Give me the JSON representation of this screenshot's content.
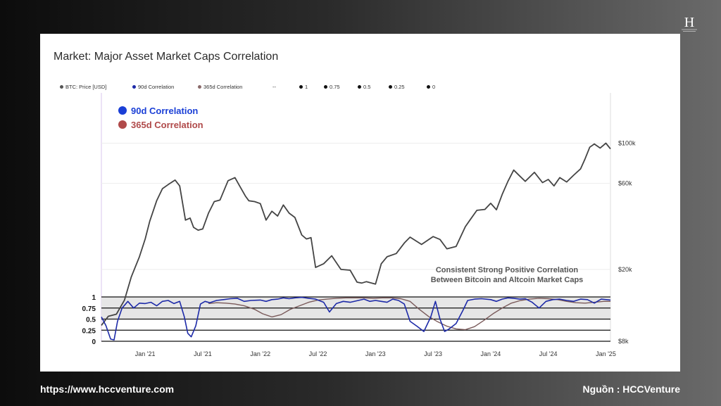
{
  "page": {
    "source_url": "https://www.hccventure.com",
    "source_credit": "Nguồn : HCCVenture",
    "logo_mark": "H"
  },
  "card": {
    "title": "Market: Major Asset Market Caps Correlation"
  },
  "legend_row": [
    {
      "label": "BTC: Price [USD]",
      "color": "#555555"
    },
    {
      "label": "90d Correlation",
      "color": "#1d2aa8"
    },
    {
      "label": "365d Correlation",
      "color": "#8a6a6a"
    },
    {
      "label": "--",
      "color": ""
    },
    {
      "label": "1",
      "color": "#111111"
    },
    {
      "label": "0.75",
      "color": "#111111"
    },
    {
      "label": "0.5",
      "color": "#111111"
    },
    {
      "label": "0.25",
      "color": "#111111"
    },
    {
      "label": "0",
      "color": "#111111"
    }
  ],
  "chart_data": {
    "type": "line",
    "inset_legend": [
      {
        "label": "90d Correlation",
        "color": "#1a3fd6"
      },
      {
        "label": "365d Correlation",
        "color": "#b04a4a"
      }
    ],
    "annotation": [
      "Consistent Strong Positive Correlation",
      "Between Bitcoin and Altcoin Market Caps"
    ],
    "x_ticks": [
      "Jan '21",
      "Jul '21",
      "Jan '22",
      "Jul '22",
      "Jan '23",
      "Jul '23",
      "Jan '24",
      "Jul '24",
      "Jan '25"
    ],
    "x_tick_dates": [
      2021.0,
      2021.5,
      2022.0,
      2022.5,
      2023.0,
      2023.5,
      2024.0,
      2024.5,
      2025.0
    ],
    "x_range": [
      2020.62,
      2025.04
    ],
    "price_axis": {
      "scale": "log",
      "ticks": [
        "$100k",
        "$60k",
        "$20k",
        "$8k"
      ],
      "tick_values": [
        100000,
        60000,
        20000,
        8000
      ],
      "range": [
        8000,
        190000
      ]
    },
    "corr_axis": {
      "ticks": [
        "1",
        "0.75",
        "0.5",
        "0.25",
        "0"
      ],
      "tick_values": [
        1,
        0.75,
        0.5,
        0.25,
        0
      ],
      "range": [
        0,
        1
      ],
      "shaded_band": [
        0.5,
        1
      ]
    },
    "series": [
      {
        "name": "BTC: Price [USD]",
        "color": "#444444",
        "x": [
          2020.62,
          2020.68,
          2020.75,
          2020.82,
          2020.88,
          2020.95,
          2021.0,
          2021.04,
          2021.1,
          2021.15,
          2021.2,
          2021.26,
          2021.3,
          2021.35,
          2021.39,
          2021.42,
          2021.46,
          2021.5,
          2021.55,
          2021.6,
          2021.65,
          2021.72,
          2021.78,
          2021.82,
          2021.87,
          2021.9,
          2021.95,
          2022.0,
          2022.05,
          2022.1,
          2022.15,
          2022.2,
          2022.25,
          2022.3,
          2022.36,
          2022.4,
          2022.44,
          2022.48,
          2022.55,
          2022.62,
          2022.7,
          2022.78,
          2022.84,
          2022.88,
          2022.92,
          2023.0,
          2023.05,
          2023.1,
          2023.18,
          2023.25,
          2023.3,
          2023.4,
          2023.5,
          2023.56,
          2023.62,
          2023.7,
          2023.78,
          2023.82,
          2023.88,
          2023.95,
          2024.0,
          2024.05,
          2024.1,
          2024.15,
          2024.2,
          2024.25,
          2024.3,
          2024.38,
          2024.45,
          2024.5,
          2024.55,
          2024.6,
          2024.66,
          2024.72,
          2024.78,
          2024.82,
          2024.86,
          2024.9,
          2024.95,
          2025.0,
          2025.04
        ],
        "values": [
          9800,
          11000,
          11300,
          13500,
          18200,
          23500,
          29500,
          37000,
          48000,
          56000,
          59000,
          62500,
          58000,
          37500,
          38500,
          34200,
          33000,
          33500,
          41000,
          47500,
          48500,
          62000,
          64500,
          58000,
          51000,
          48000,
          47500,
          46300,
          37500,
          42000,
          39500,
          45500,
          41000,
          38800,
          31000,
          29500,
          30000,
          20500,
          21500,
          23800,
          20000,
          19800,
          17000,
          16800,
          17100,
          16600,
          21500,
          23500,
          24500,
          28000,
          30200,
          27500,
          30400,
          29300,
          26000,
          26800,
          34500,
          37500,
          42500,
          43000,
          46500,
          42800,
          52000,
          61500,
          71000,
          66000,
          61500,
          69000,
          60500,
          63000,
          58000,
          64500,
          61000,
          66500,
          72000,
          82000,
          95000,
          99000,
          94000,
          100000,
          93000
        ]
      },
      {
        "name": "90d Correlation",
        "color": "#1d2aa8",
        "x": [
          2020.62,
          2020.66,
          2020.7,
          2020.73,
          2020.76,
          2020.8,
          2020.85,
          2020.9,
          2020.95,
          2021.0,
          2021.05,
          2021.1,
          2021.15,
          2021.2,
          2021.25,
          2021.3,
          2021.34,
          2021.37,
          2021.4,
          2021.44,
          2021.48,
          2021.52,
          2021.56,
          2021.62,
          2021.68,
          2021.74,
          2021.8,
          2021.86,
          2021.92,
          2022.0,
          2022.05,
          2022.1,
          2022.15,
          2022.2,
          2022.25,
          2022.3,
          2022.36,
          2022.42,
          2022.48,
          2022.55,
          2022.6,
          2022.66,
          2022.72,
          2022.78,
          2022.85,
          2022.9,
          2022.95,
          2023.0,
          2023.05,
          2023.1,
          2023.15,
          2023.2,
          2023.25,
          2023.3,
          2023.36,
          2023.42,
          2023.48,
          2023.52,
          2023.56,
          2023.6,
          2023.64,
          2023.7,
          2023.76,
          2023.8,
          2023.86,
          2023.92,
          2024.0,
          2024.05,
          2024.1,
          2024.15,
          2024.2,
          2024.25,
          2024.3,
          2024.36,
          2024.42,
          2024.48,
          2024.54,
          2024.6,
          2024.66,
          2024.72,
          2024.78,
          2024.84,
          2024.9,
          2024.96,
          2025.04
        ],
        "values": [
          0.55,
          0.35,
          0.05,
          0.03,
          0.45,
          0.75,
          0.9,
          0.75,
          0.86,
          0.85,
          0.88,
          0.8,
          0.9,
          0.92,
          0.85,
          0.9,
          0.55,
          0.18,
          0.1,
          0.35,
          0.84,
          0.9,
          0.87,
          0.92,
          0.94,
          0.96,
          0.97,
          0.9,
          0.92,
          0.93,
          0.9,
          0.94,
          0.95,
          0.98,
          0.96,
          0.98,
          0.99,
          0.97,
          0.95,
          0.88,
          0.66,
          0.85,
          0.9,
          0.88,
          0.92,
          0.95,
          0.9,
          0.92,
          0.9,
          0.88,
          0.95,
          0.92,
          0.84,
          0.45,
          0.34,
          0.22,
          0.55,
          0.9,
          0.5,
          0.22,
          0.28,
          0.4,
          0.7,
          0.92,
          0.95,
          0.96,
          0.94,
          0.9,
          0.95,
          0.98,
          0.97,
          0.95,
          0.96,
          0.88,
          0.75,
          0.9,
          0.94,
          0.95,
          0.92,
          0.9,
          0.95,
          0.94,
          0.86,
          0.95,
          0.93
        ]
      },
      {
        "name": "365d Correlation",
        "color": "#7a5a5a",
        "x": [
          2021.55,
          2021.62,
          2021.7,
          2021.78,
          2021.86,
          2021.95,
          2022.02,
          2022.1,
          2022.18,
          2022.26,
          2022.34,
          2022.42,
          2022.5,
          2022.58,
          2022.66,
          2022.74,
          2022.82,
          2022.9,
          2022.98,
          2023.06,
          2023.14,
          2023.22,
          2023.3,
          2023.38,
          2023.46,
          2023.54,
          2023.62,
          2023.7,
          2023.78,
          2023.86,
          2023.94,
          2024.02,
          2024.1,
          2024.18,
          2024.26,
          2024.34,
          2024.42,
          2024.5,
          2024.58,
          2024.66,
          2024.74,
          2024.82,
          2024.9,
          2024.98,
          2025.04
        ],
        "values": [
          0.85,
          0.87,
          0.86,
          0.84,
          0.8,
          0.72,
          0.62,
          0.55,
          0.6,
          0.72,
          0.8,
          0.88,
          0.93,
          0.95,
          0.97,
          0.98,
          0.98,
          0.98,
          0.97,
          0.98,
          0.98,
          0.96,
          0.9,
          0.72,
          0.56,
          0.44,
          0.34,
          0.28,
          0.26,
          0.33,
          0.47,
          0.62,
          0.75,
          0.86,
          0.92,
          0.95,
          0.97,
          0.96,
          0.94,
          0.9,
          0.87,
          0.86,
          0.88,
          0.9,
          0.9
        ]
      }
    ]
  }
}
